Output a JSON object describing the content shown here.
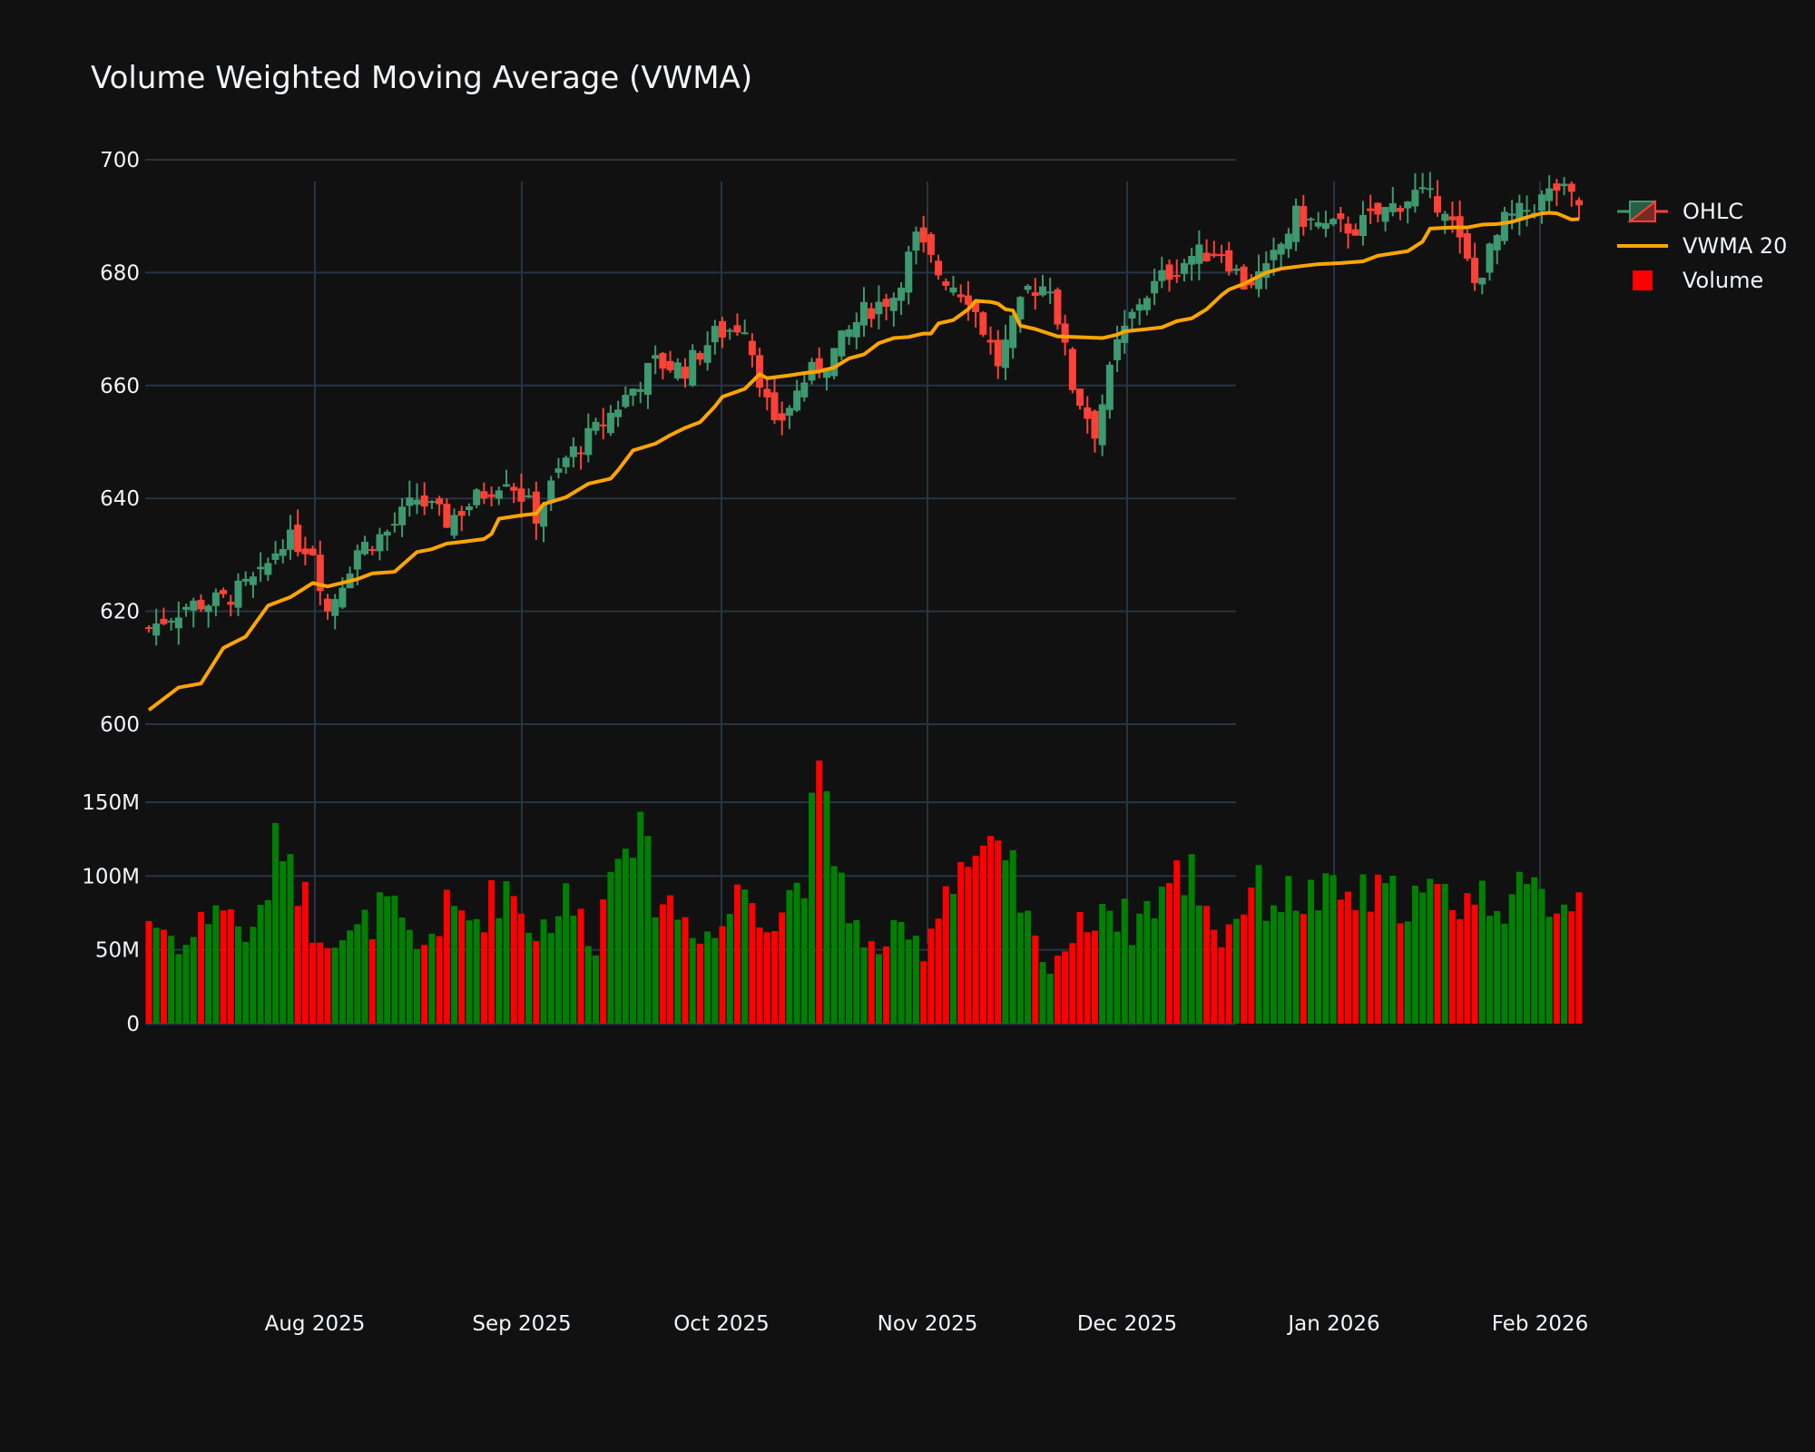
{
  "title": "Volume Weighted Moving Average (VWMA)",
  "legend": [
    {
      "label": "OHLC",
      "icon": "candlestick-icon"
    },
    {
      "label": "VWMA 20",
      "icon": "line-icon",
      "color": "#FFA500"
    },
    {
      "label": "Volume",
      "icon": "square-icon",
      "color": "#FF0000"
    }
  ],
  "colors": {
    "background": "#111111",
    "grid": "#283442",
    "increasing": "#3D9970",
    "decreasing": "#FF4136",
    "vwma": "#FFA500",
    "volume_up": "#008000",
    "volume_down": "#FF0000",
    "text": "#f2f5fa"
  },
  "chart_data": [
    {
      "type": "candlestick",
      "title": "Volume Weighted Moving Average (VWMA)",
      "ylabel": "",
      "ylim": [
        598,
        703
      ],
      "yticks": [
        600,
        620,
        640,
        660,
        680,
        700
      ],
      "xticks": [
        "Aug 2025",
        "Sep 2025",
        "Oct 2025",
        "Nov 2025",
        "Dec 2025",
        "Jan 2026",
        "Feb 2026"
      ],
      "grid": true,
      "legend_position": "right",
      "series": [
        {
          "name": "OHLC",
          "kind": "ohlc"
        },
        {
          "name": "VWMA 20",
          "kind": "line",
          "color": "#FFA500"
        }
      ],
      "start_date": "2025-07-07",
      "end_date": "2026-02-06",
      "anchors": {
        "close": [
          [
            0,
            617
          ],
          [
            5,
            621
          ],
          [
            10,
            622
          ],
          [
            15,
            626
          ],
          [
            18,
            633
          ],
          [
            22,
            631
          ],
          [
            24,
            620
          ],
          [
            28,
            631
          ],
          [
            32,
            634
          ],
          [
            36,
            640
          ],
          [
            40,
            636
          ],
          [
            44,
            640
          ],
          [
            48,
            644
          ],
          [
            52,
            637
          ],
          [
            56,
            647
          ],
          [
            60,
            652
          ],
          [
            64,
            658
          ],
          [
            68,
            664
          ],
          [
            72,
            663
          ],
          [
            76,
            669
          ],
          [
            80,
            671
          ],
          [
            84,
            652
          ],
          [
            88,
            661
          ],
          [
            92,
            666
          ],
          [
            96,
            673
          ],
          [
            100,
            676
          ],
          [
            103,
            686
          ],
          [
            106,
            680
          ],
          [
            110,
            676
          ],
          [
            114,
            664
          ],
          [
            118,
            677
          ],
          [
            121,
            678
          ],
          [
            124,
            660
          ],
          [
            127,
            652
          ],
          [
            130,
            667
          ],
          [
            133,
            675
          ],
          [
            136,
            679
          ],
          [
            140,
            683
          ],
          [
            144,
            684
          ],
          [
            147,
            678
          ],
          [
            150,
            680
          ],
          [
            154,
            690
          ],
          [
            158,
            688
          ],
          [
            162,
            688
          ],
          [
            166,
            691
          ],
          [
            170,
            694
          ],
          [
            174,
            692
          ],
          [
            178,
            678
          ],
          [
            182,
            689
          ],
          [
            186,
            692
          ],
          [
            189,
            695
          ],
          [
            192,
            692
          ],
          [
            195,
            683
          ],
          [
            198,
            690
          ]
        ],
        "volume_m": [
          [
            0,
            75
          ],
          [
            5,
            55
          ],
          [
            9,
            88
          ],
          [
            14,
            60
          ],
          [
            18,
            140
          ],
          [
            22,
            70
          ],
          [
            27,
            60
          ],
          [
            32,
            85
          ],
          [
            36,
            50
          ],
          [
            40,
            80
          ],
          [
            44,
            75
          ],
          [
            48,
            100
          ],
          [
            52,
            65
          ],
          [
            56,
            88
          ],
          [
            60,
            60
          ],
          [
            64,
            158
          ],
          [
            68,
            95
          ],
          [
            72,
            75
          ],
          [
            76,
            62
          ],
          [
            80,
            100
          ],
          [
            84,
            72
          ],
          [
            88,
            113
          ],
          [
            90,
            164
          ],
          [
            92,
            123
          ],
          [
            96,
            50
          ],
          [
            100,
            62
          ],
          [
            104,
            55
          ],
          [
            108,
            113
          ],
          [
            112,
            120
          ],
          [
            116,
            103
          ],
          [
            120,
            40
          ],
          [
            124,
            60
          ],
          [
            128,
            88
          ],
          [
            132,
            70
          ],
          [
            136,
            95
          ],
          [
            140,
            110
          ],
          [
            144,
            60
          ],
          [
            148,
            98
          ],
          [
            150,
            90
          ]
        ],
        "vwma": [
          [
            0,
            602.5
          ],
          [
            4,
            606.5
          ],
          [
            7,
            607.2
          ],
          [
            10,
            613.5
          ],
          [
            13,
            615.5
          ],
          [
            16,
            621
          ],
          [
            19,
            622.5
          ],
          [
            22,
            625
          ],
          [
            24,
            624.4
          ],
          [
            28,
            625.7
          ],
          [
            30,
            626.7
          ],
          [
            33,
            627
          ],
          [
            36,
            630.5
          ],
          [
            38,
            631
          ],
          [
            40,
            632
          ],
          [
            42,
            632.3
          ],
          [
            45,
            632.8
          ],
          [
            46,
            633.7
          ],
          [
            47,
            636.4
          ],
          [
            50,
            637
          ],
          [
            52,
            637.3
          ],
          [
            53,
            639
          ],
          [
            56,
            640.2
          ],
          [
            59,
            642.6
          ],
          [
            62,
            643.5
          ],
          [
            63,
            645
          ],
          [
            65,
            648.5
          ],
          [
            68,
            649.7
          ],
          [
            70,
            651.2
          ],
          [
            72,
            652.5
          ],
          [
            74,
            653.5
          ],
          [
            76,
            656.3
          ],
          [
            77,
            658
          ],
          [
            80,
            659.4
          ],
          [
            82,
            662
          ],
          [
            83,
            661.3
          ],
          [
            86,
            661.8
          ],
          [
            88,
            662.2
          ],
          [
            90,
            662.5
          ],
          [
            92,
            663.2
          ],
          [
            94,
            664.8
          ],
          [
            96,
            665.5
          ],
          [
            98,
            667.5
          ],
          [
            100,
            668.4
          ],
          [
            102,
            668.6
          ],
          [
            104,
            669.2
          ],
          [
            105,
            669.2
          ],
          [
            106,
            671
          ],
          [
            108,
            671.6
          ],
          [
            110,
            673.5
          ],
          [
            111,
            675
          ],
          [
            113,
            674.8
          ],
          [
            114,
            674.5
          ],
          [
            115,
            673.5
          ],
          [
            116,
            673.3
          ],
          [
            117,
            670.6
          ],
          [
            119,
            670
          ],
          [
            122,
            668.7
          ],
          [
            126,
            668.5
          ],
          [
            128,
            668.4
          ],
          [
            130,
            669
          ],
          [
            131,
            669.6
          ],
          [
            134,
            670
          ],
          [
            136,
            670.3
          ],
          [
            138,
            671.4
          ],
          [
            140,
            671.9
          ],
          [
            142,
            673.5
          ],
          [
            144,
            676
          ],
          [
            145,
            677
          ],
          [
            147,
            678
          ],
          [
            150,
            680
          ],
          [
            152,
            680.7
          ],
          [
            155,
            681.2
          ],
          [
            157,
            681.5
          ],
          [
            160,
            681.7
          ],
          [
            163,
            682
          ],
          [
            165,
            683
          ],
          [
            167,
            683.4
          ],
          [
            169,
            683.8
          ],
          [
            171,
            685.5
          ],
          [
            172,
            687.8
          ],
          [
            175,
            688
          ],
          [
            177,
            688
          ],
          [
            179,
            688.5
          ],
          [
            181,
            688.6
          ],
          [
            183,
            689
          ],
          [
            185,
            689.8
          ],
          [
            187,
            690.5
          ],
          [
            188,
            690.6
          ],
          [
            189,
            690.5
          ],
          [
            191,
            689.4
          ],
          [
            192,
            689.5
          ]
        ]
      }
    },
    {
      "type": "bar",
      "name": "Volume",
      "ylim": [
        0,
        170
      ],
      "yticks": [
        0,
        50,
        100,
        150
      ],
      "ytick_labels": [
        "0",
        "50M",
        "100M",
        "150M"
      ],
      "grid": true,
      "notable_peaks_m": [
        140,
        158,
        164,
        127,
        122
      ]
    }
  ]
}
